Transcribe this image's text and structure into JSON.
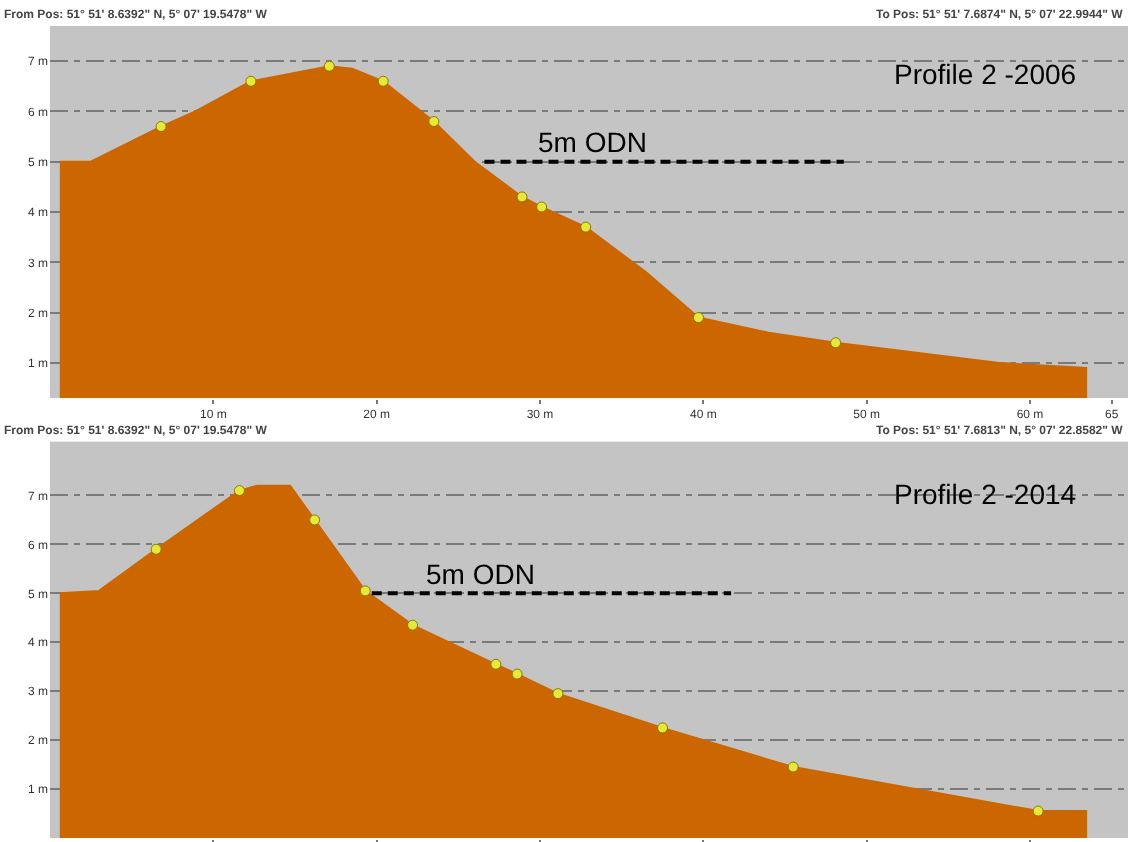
{
  "chart_data": [
    {
      "type": "area",
      "title": "Profile 2 -2006",
      "annotations": [
        "From Pos: 51° 51' 8.6392\" N, 5° 07' 19.5478\" W",
        "To Pos: 51° 51' 7.6874\" N, 5° 07' 22.9944\" W"
      ],
      "xlim": [
        0,
        66
      ],
      "ylim": [
        0.3,
        7.7
      ],
      "xticks": [
        {
          "value": 10,
          "label": "10 m"
        },
        {
          "value": 20,
          "label": "20 m"
        },
        {
          "value": 30,
          "label": "30 m"
        },
        {
          "value": 40,
          "label": "40 m"
        },
        {
          "value": 50,
          "label": "50 m"
        },
        {
          "value": 60,
          "label": "60 m"
        },
        65
      ],
      "yticks": [
        {
          "value": 1,
          "label": "1 m"
        },
        {
          "value": 2,
          "label": "2 m"
        },
        {
          "value": 3,
          "label": "3 m"
        },
        {
          "value": 4,
          "label": "4 m"
        },
        {
          "value": 5,
          "label": "5 m"
        },
        {
          "value": 6,
          "label": "6 m"
        },
        {
          "value": 7,
          "label": "7 m"
        }
      ],
      "grid": "y",
      "series": [
        {
          "color": "#cc6600",
          "x": [
            0.6,
            2.5,
            6.8,
            8.9,
            12.3,
            17.1,
            18.5,
            20.4,
            23.5,
            26.0,
            28.9,
            30.1,
            32.8,
            36.5,
            39.7,
            44.0,
            48.1,
            58.0,
            63.5
          ],
          "values": [
            5.0,
            5.0,
            5.7,
            6.0,
            6.6,
            6.9,
            6.85,
            6.6,
            5.8,
            5.0,
            4.3,
            4.1,
            3.7,
            2.8,
            1.9,
            1.6,
            1.4,
            1.0,
            0.9
          ]
        },
        {
          "type": "scatter",
          "marker": "circle",
          "color": "#e8e83a",
          "x": [
            6.8,
            12.3,
            17.1,
            20.4,
            23.5,
            28.9,
            30.1,
            32.8,
            39.7,
            48.1
          ],
          "values": [
            5.7,
            6.6,
            6.9,
            6.6,
            5.8,
            4.3,
            4.1,
            3.7,
            1.9,
            1.4
          ]
        },
        {
          "type": "line",
          "name": "5m ODN",
          "line_style": "dashed",
          "color": "#000000",
          "x": [
            26.6,
            48.6
          ],
          "values": [
            5,
            5
          ]
        }
      ]
    },
    {
      "type": "area",
      "title": "Profile 2 -2014",
      "annotations": [
        "From Pos: 51° 51' 8.6392\" N, 5° 07' 19.5478\" W",
        "To Pos: 51° 51' 7.6813\" N, 5° 07' 22.8582\" W"
      ],
      "xlim": [
        0,
        66
      ],
      "ylim": [
        0,
        8.1
      ],
      "xticks": [
        {
          "value": 10,
          "label": null
        },
        {
          "value": 20,
          "label": null
        },
        {
          "value": 30,
          "label": null
        },
        {
          "value": 40,
          "label": null
        },
        {
          "value": 50,
          "label": null
        },
        {
          "value": 60,
          "label": null
        }
      ],
      "yticks": [
        {
          "value": 1,
          "label": "1 m"
        },
        {
          "value": 2,
          "label": "2 m"
        },
        {
          "value": 3,
          "label": "3 m"
        },
        {
          "value": 4,
          "label": "4 m"
        },
        {
          "value": 5,
          "label": "5 m"
        },
        {
          "value": 6,
          "label": "6 m"
        },
        {
          "value": 7,
          "label": "7 m"
        }
      ],
      "grid": "y",
      "tick_labels": "y",
      "series": [
        {
          "color": "#cc6600",
          "x": [
            0.6,
            3.0,
            6.5,
            11.6,
            12.7,
            14.7,
            16.2,
            19.3,
            22.2,
            27.3,
            28.6,
            31.1,
            37.5,
            45.5,
            60.5,
            63.5
          ],
          "values": [
            5.0,
            5.05,
            5.9,
            7.1,
            7.2,
            7.2,
            6.5,
            5.05,
            4.35,
            3.55,
            3.35,
            2.95,
            2.25,
            1.45,
            0.55,
            0.55
          ]
        },
        {
          "type": "scatter",
          "marker": "circle",
          "color": "#e8e83a",
          "x": [
            6.5,
            11.6,
            16.2,
            19.3,
            22.2,
            27.3,
            28.6,
            31.1,
            37.5,
            45.5,
            60.5
          ],
          "values": [
            5.9,
            7.1,
            6.5,
            5.05,
            4.35,
            3.55,
            3.35,
            2.95,
            2.25,
            1.45,
            0.55
          ]
        },
        {
          "type": "line",
          "name": "5m ODN",
          "line_style": "dashed",
          "color": "#000000",
          "x": [
            19.7,
            41.7
          ],
          "values": [
            5,
            5
          ]
        }
      ]
    }
  ]
}
